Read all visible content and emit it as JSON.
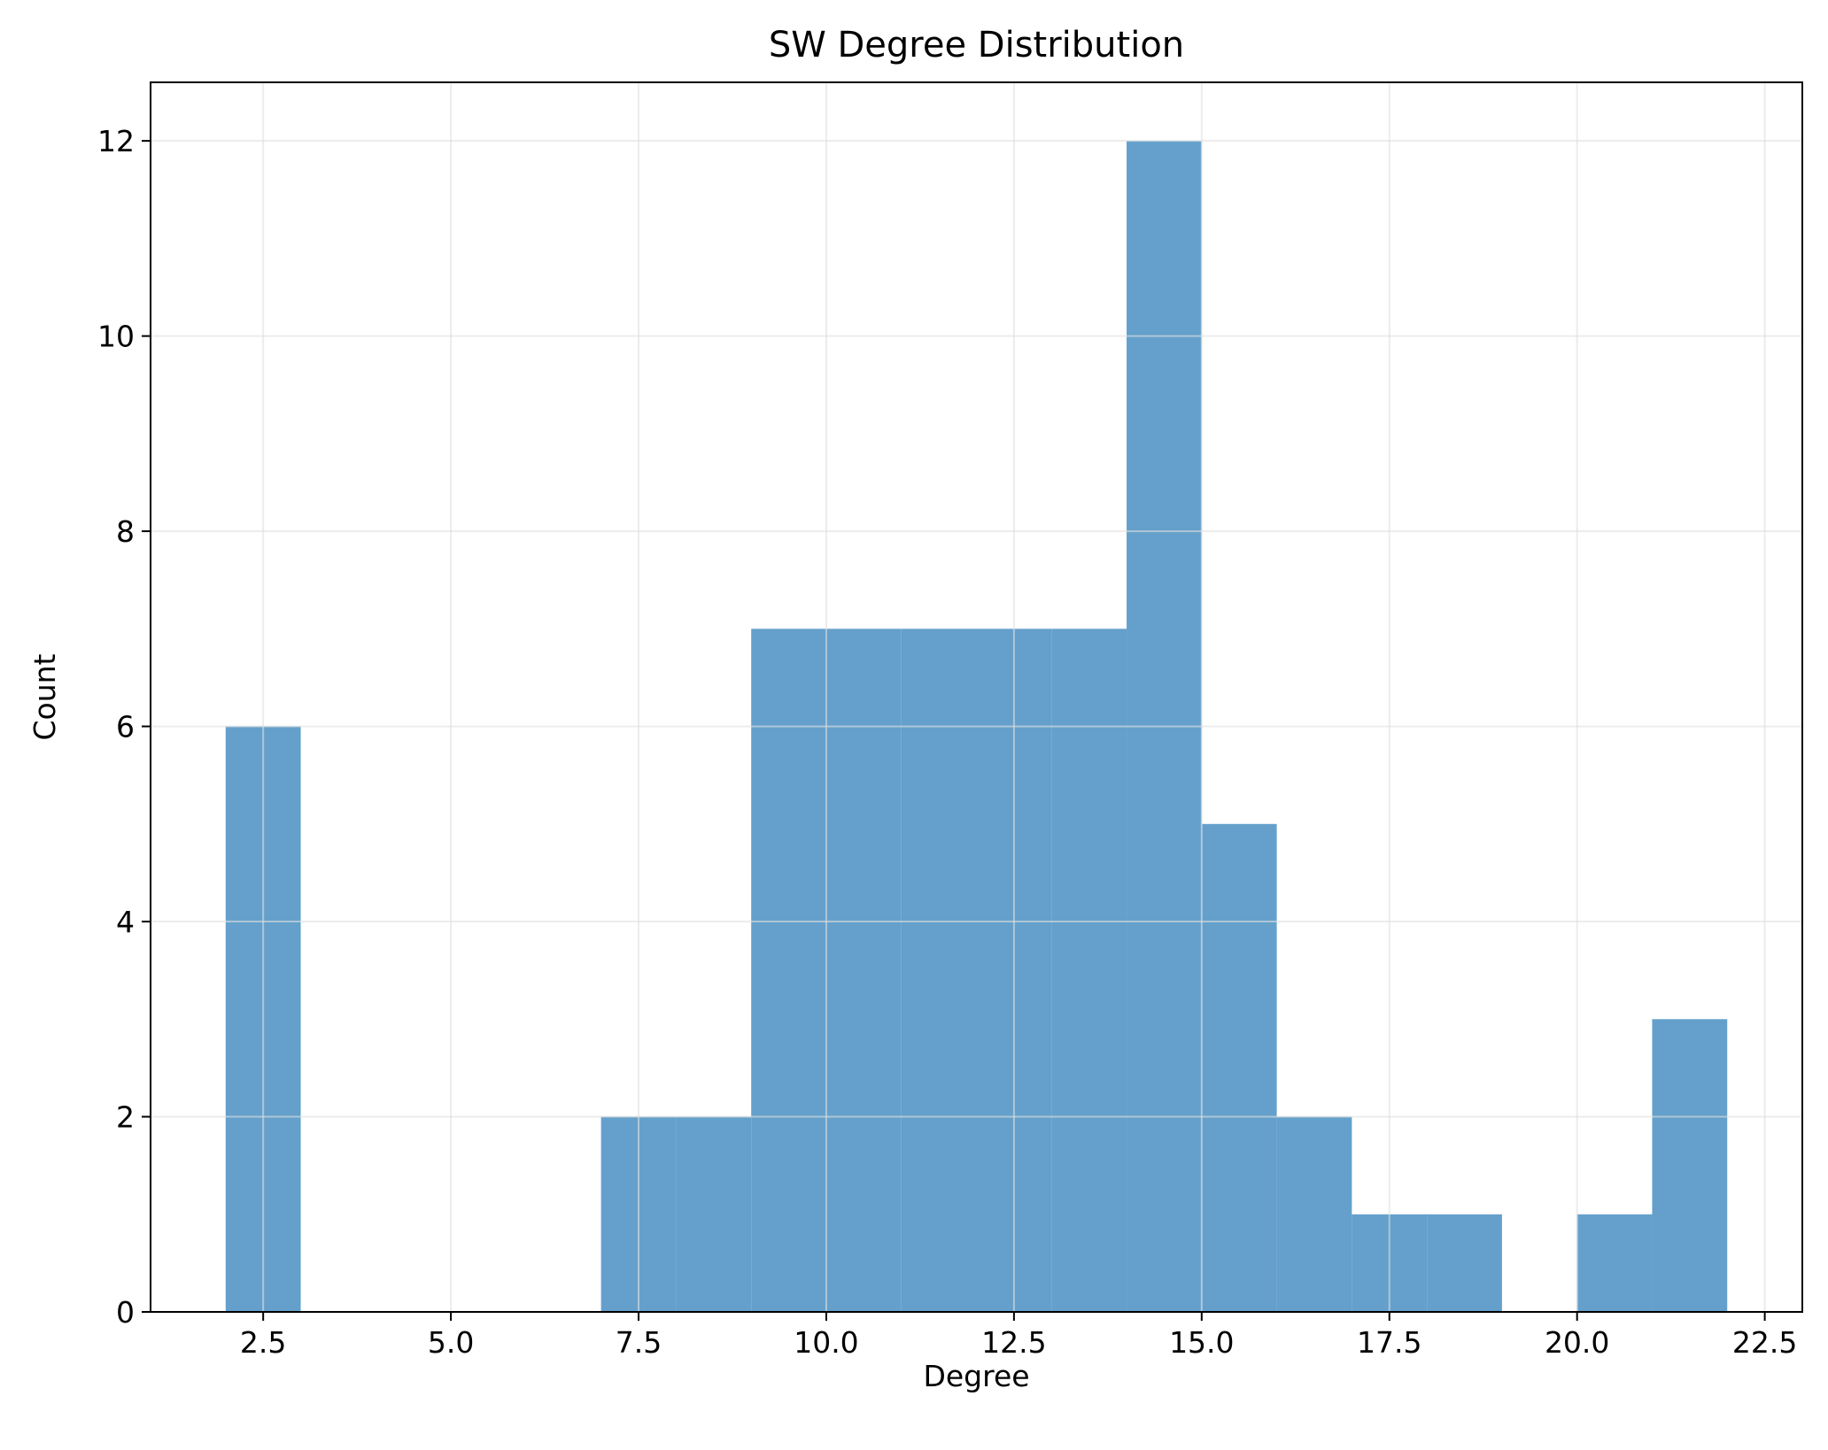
{
  "chart_data": {
    "type": "bar",
    "title": "SW Degree Distribution",
    "xlabel": "Degree",
    "ylabel": "Count",
    "bin_width": 1,
    "bins": [
      {
        "start": 2,
        "end": 3,
        "count": 6
      },
      {
        "start": 3,
        "end": 4,
        "count": 0
      },
      {
        "start": 4,
        "end": 5,
        "count": 0
      },
      {
        "start": 5,
        "end": 6,
        "count": 0
      },
      {
        "start": 6,
        "end": 7,
        "count": 0
      },
      {
        "start": 7,
        "end": 8,
        "count": 2
      },
      {
        "start": 8,
        "end": 9,
        "count": 2
      },
      {
        "start": 9,
        "end": 10,
        "count": 7
      },
      {
        "start": 10,
        "end": 11,
        "count": 7
      },
      {
        "start": 11,
        "end": 12,
        "count": 7
      },
      {
        "start": 12,
        "end": 13,
        "count": 7
      },
      {
        "start": 13,
        "end": 14,
        "count": 7
      },
      {
        "start": 14,
        "end": 15,
        "count": 12
      },
      {
        "start": 15,
        "end": 16,
        "count": 5
      },
      {
        "start": 16,
        "end": 17,
        "count": 2
      },
      {
        "start": 17,
        "end": 18,
        "count": 1
      },
      {
        "start": 18,
        "end": 19,
        "count": 1
      },
      {
        "start": 19,
        "end": 20,
        "count": 0
      },
      {
        "start": 20,
        "end": 21,
        "count": 1
      },
      {
        "start": 21,
        "end": 22,
        "count": 3
      }
    ],
    "xlim": [
      1.0,
      23.0
    ],
    "ylim": [
      0,
      12.6
    ],
    "xticks": [
      2.5,
      5.0,
      7.5,
      10.0,
      12.5,
      15.0,
      17.5,
      20.0,
      22.5
    ],
    "xtick_labels": [
      "2.5",
      "5.0",
      "7.5",
      "10.0",
      "12.5",
      "15.0",
      "17.5",
      "20.0",
      "22.5"
    ],
    "yticks": [
      0,
      2,
      4,
      6,
      8,
      10,
      12
    ],
    "ytick_labels": [
      "0",
      "2",
      "4",
      "6",
      "8",
      "10",
      "12"
    ],
    "grid": true,
    "colors": {
      "bar": "#64a0cb",
      "grid": "#e0e0e0",
      "axis": "#000000"
    }
  }
}
